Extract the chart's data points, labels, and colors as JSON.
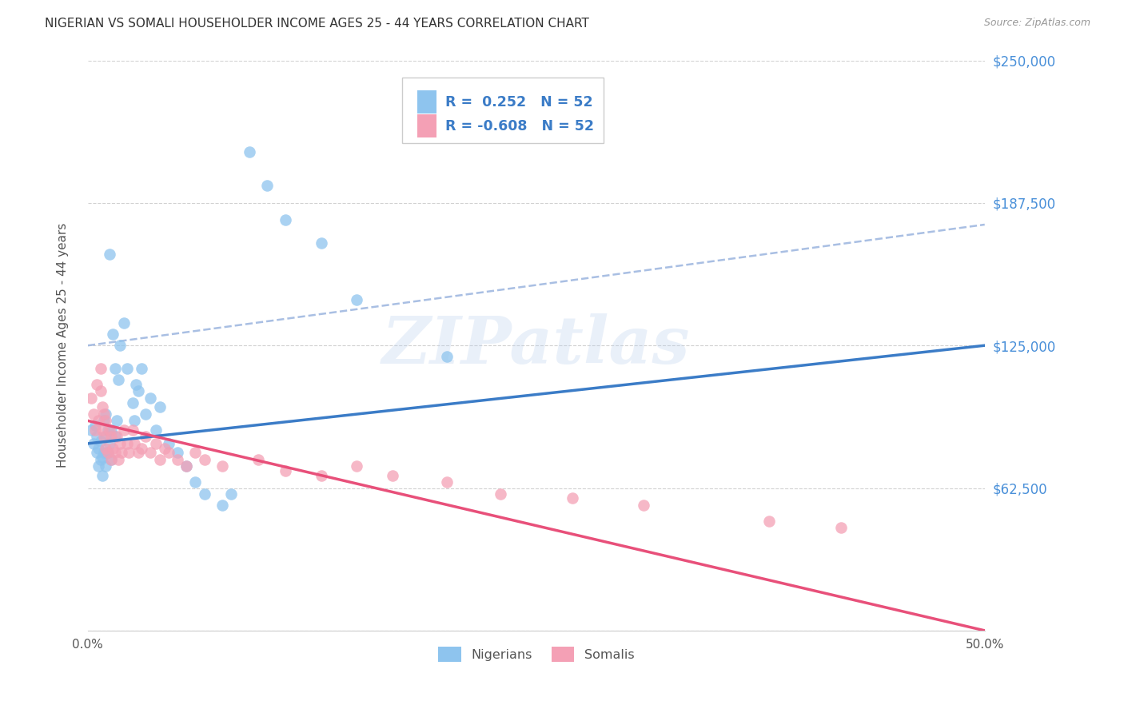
{
  "title": "NIGERIAN VS SOMALI HOUSEHOLDER INCOME AGES 25 - 44 YEARS CORRELATION CHART",
  "source": "Source: ZipAtlas.com",
  "ylabel": "Householder Income Ages 25 - 44 years",
  "xlim": [
    0.0,
    0.5
  ],
  "ylim": [
    0,
    250000
  ],
  "yticks": [
    0,
    62500,
    125000,
    187500,
    250000
  ],
  "xticks": [
    0.0,
    0.1,
    0.2,
    0.3,
    0.4,
    0.5
  ],
  "xtick_labels": [
    "0.0%",
    "",
    "",
    "",
    "",
    "50.0%"
  ],
  "r_nigerian": 0.252,
  "r_somali": -0.608,
  "n_nigerian": 52,
  "n_somali": 52,
  "nigerian_color": "#8EC4EE",
  "somali_color": "#F4A0B5",
  "nigerian_line_color": "#3B7CC7",
  "somali_line_color": "#E8507A",
  "dash_line_color": "#A0B8E0",
  "watermark_text": "ZIPatlas",
  "background_color": "#FFFFFF",
  "nigerian_x": [
    0.002,
    0.003,
    0.004,
    0.005,
    0.005,
    0.006,
    0.006,
    0.007,
    0.007,
    0.008,
    0.008,
    0.009,
    0.009,
    0.01,
    0.01,
    0.01,
    0.011,
    0.011,
    0.012,
    0.012,
    0.013,
    0.013,
    0.014,
    0.015,
    0.015,
    0.016,
    0.017,
    0.018,
    0.02,
    0.022,
    0.025,
    0.026,
    0.027,
    0.028,
    0.03,
    0.032,
    0.035,
    0.038,
    0.04,
    0.045,
    0.05,
    0.055,
    0.06,
    0.065,
    0.075,
    0.08,
    0.09,
    0.1,
    0.11,
    0.13,
    0.15,
    0.2
  ],
  "nigerian_y": [
    88000,
    82000,
    90000,
    78000,
    85000,
    72000,
    80000,
    75000,
    83000,
    68000,
    76000,
    92000,
    78000,
    85000,
    72000,
    95000,
    88000,
    78000,
    165000,
    82000,
    88000,
    75000,
    130000,
    115000,
    85000,
    92000,
    110000,
    125000,
    135000,
    115000,
    100000,
    92000,
    108000,
    105000,
    115000,
    95000,
    102000,
    88000,
    98000,
    82000,
    78000,
    72000,
    65000,
    60000,
    55000,
    60000,
    210000,
    195000,
    180000,
    170000,
    145000,
    120000
  ],
  "somali_x": [
    0.002,
    0.003,
    0.004,
    0.005,
    0.006,
    0.007,
    0.007,
    0.008,
    0.008,
    0.009,
    0.009,
    0.01,
    0.01,
    0.011,
    0.012,
    0.013,
    0.013,
    0.014,
    0.015,
    0.016,
    0.017,
    0.018,
    0.019,
    0.02,
    0.022,
    0.023,
    0.025,
    0.026,
    0.028,
    0.03,
    0.032,
    0.035,
    0.038,
    0.04,
    0.043,
    0.045,
    0.05,
    0.055,
    0.06,
    0.065,
    0.075,
    0.095,
    0.11,
    0.13,
    0.15,
    0.17,
    0.2,
    0.23,
    0.27,
    0.31,
    0.38,
    0.42
  ],
  "somali_y": [
    102000,
    95000,
    88000,
    108000,
    92000,
    105000,
    115000,
    88000,
    98000,
    85000,
    95000,
    80000,
    92000,
    78000,
    88000,
    75000,
    85000,
    80000,
    78000,
    85000,
    75000,
    82000,
    78000,
    88000,
    82000,
    78000,
    88000,
    82000,
    78000,
    80000,
    85000,
    78000,
    82000,
    75000,
    80000,
    78000,
    75000,
    72000,
    78000,
    75000,
    72000,
    75000,
    70000,
    68000,
    72000,
    68000,
    65000,
    60000,
    58000,
    55000,
    48000,
    45000
  ],
  "nig_line_x0": 0.0,
  "nig_line_y0": 82000,
  "nig_line_x1": 0.5,
  "nig_line_y1": 125000,
  "som_line_x0": 0.0,
  "som_line_y0": 92000,
  "som_line_x1": 0.5,
  "som_line_y1": 0,
  "dash_line_x0": 0.0,
  "dash_line_y0": 125000,
  "dash_line_x1": 0.5,
  "dash_line_y1": 178000,
  "legend_r1_label": "R =  0.252   N = 52",
  "legend_r2_label": "R = -0.608   N = 52",
  "legend_nigerians": "Nigerians",
  "legend_somalis": "Somalis"
}
